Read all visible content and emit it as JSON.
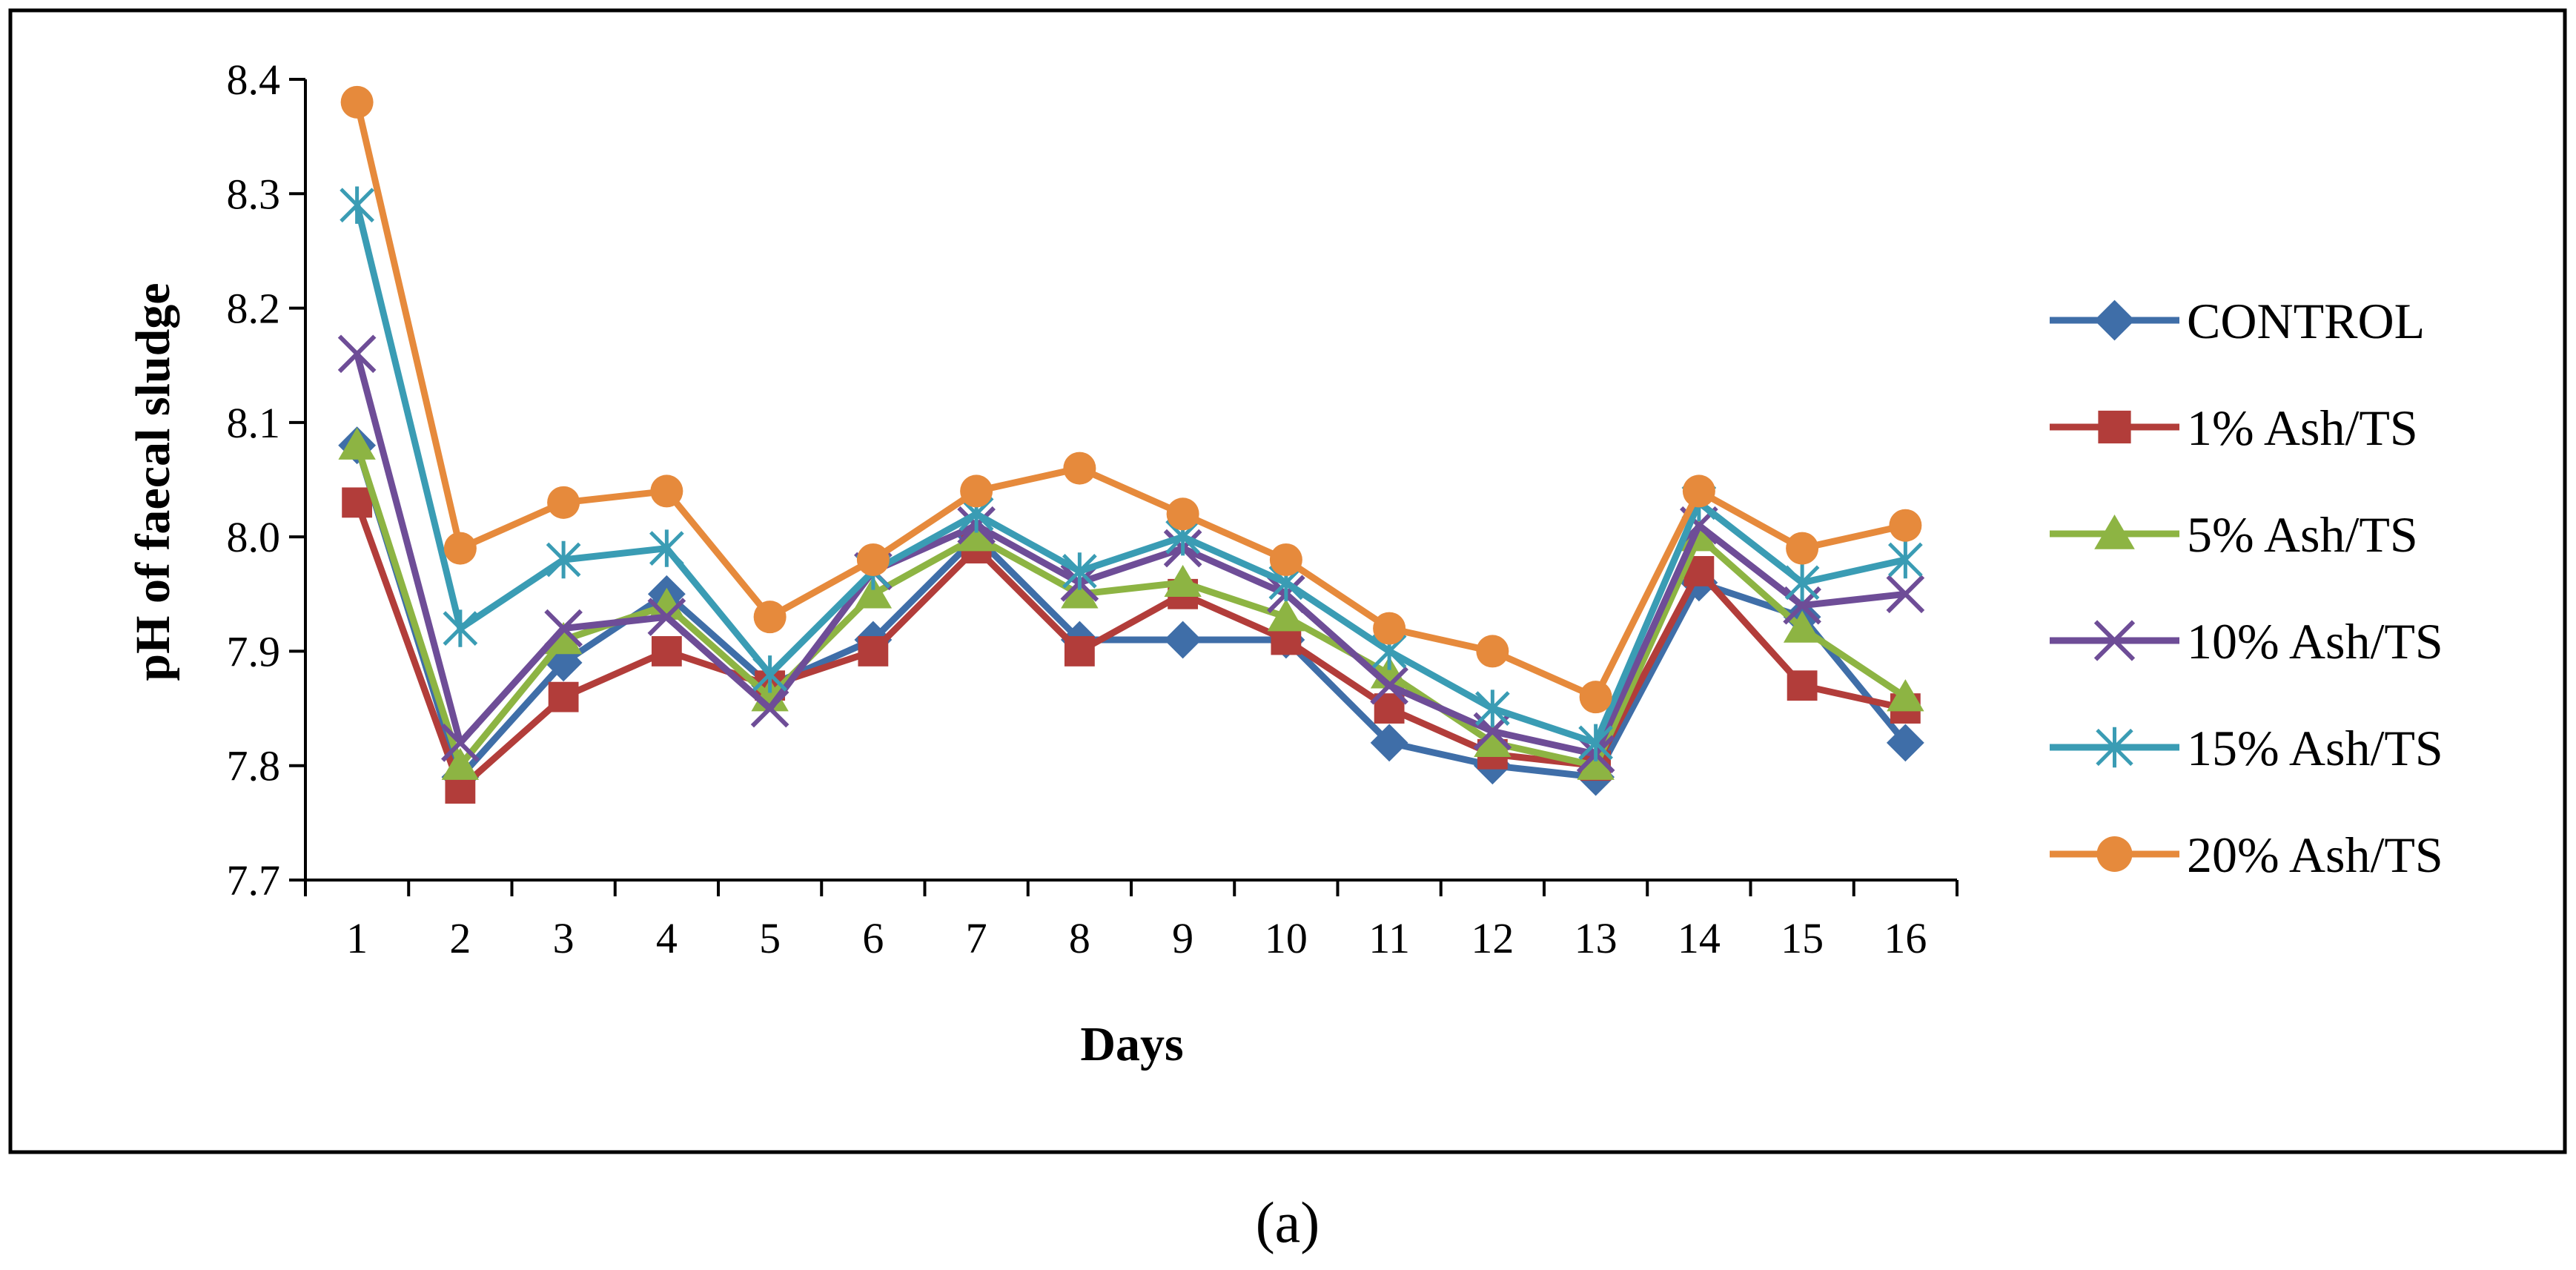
{
  "chart_data": {
    "type": "line",
    "title": "",
    "xlabel": "Days",
    "ylabel": "pH of faecal sludge",
    "x": [
      "1",
      "2",
      "3",
      "4",
      "5",
      "6",
      "7",
      "8",
      "9",
      "10",
      "11",
      "12",
      "13",
      "14",
      "15",
      "16"
    ],
    "ylim": [
      7.7,
      8.4
    ],
    "yticks": [
      "7.7",
      "7.8",
      "7.9",
      "8.0",
      "8.1",
      "8.2",
      "8.3",
      "8.4"
    ],
    "grid": false,
    "legend_position": "right",
    "series": [
      {
        "name": "CONTROL",
        "color": "#3F6EA8",
        "marker": "diamond",
        "values": [
          8.08,
          7.79,
          7.89,
          7.95,
          7.87,
          7.91,
          8.0,
          7.91,
          7.91,
          7.91,
          7.82,
          7.8,
          7.79,
          7.96,
          7.93,
          7.82
        ]
      },
      {
        "name": "1% Ash/TS",
        "color": "#B23D3A",
        "marker": "square",
        "values": [
          8.03,
          7.78,
          7.86,
          7.9,
          7.87,
          7.9,
          7.99,
          7.9,
          7.95,
          7.91,
          7.85,
          7.81,
          7.8,
          7.97,
          7.87,
          7.85
        ]
      },
      {
        "name": "5% Ash/TS",
        "color": "#8DB443",
        "marker": "triangle",
        "values": [
          8.08,
          7.8,
          7.91,
          7.94,
          7.86,
          7.95,
          8.0,
          7.95,
          7.96,
          7.93,
          7.88,
          7.82,
          7.8,
          8.0,
          7.92,
          7.86
        ]
      },
      {
        "name": "10% Ash/TS",
        "color": "#6E4D97",
        "marker": "x",
        "values": [
          8.16,
          7.82,
          7.92,
          7.93,
          7.85,
          7.97,
          8.01,
          7.96,
          7.99,
          7.95,
          7.87,
          7.83,
          7.81,
          8.01,
          7.94,
          7.95
        ]
      },
      {
        "name": "15% Ash/TS",
        "color": "#3A9CB4",
        "marker": "star",
        "values": [
          8.29,
          7.92,
          7.98,
          7.99,
          7.88,
          7.97,
          8.02,
          7.97,
          8.0,
          7.96,
          7.9,
          7.85,
          7.82,
          8.03,
          7.96,
          7.98
        ]
      },
      {
        "name": "20% Ash/TS",
        "color": "#E68A3C",
        "marker": "circle",
        "values": [
          8.38,
          7.99,
          8.03,
          8.04,
          7.93,
          7.98,
          8.04,
          8.06,
          8.02,
          7.98,
          7.92,
          7.9,
          7.86,
          8.04,
          7.99,
          8.01
        ]
      }
    ]
  },
  "caption": "(a)"
}
